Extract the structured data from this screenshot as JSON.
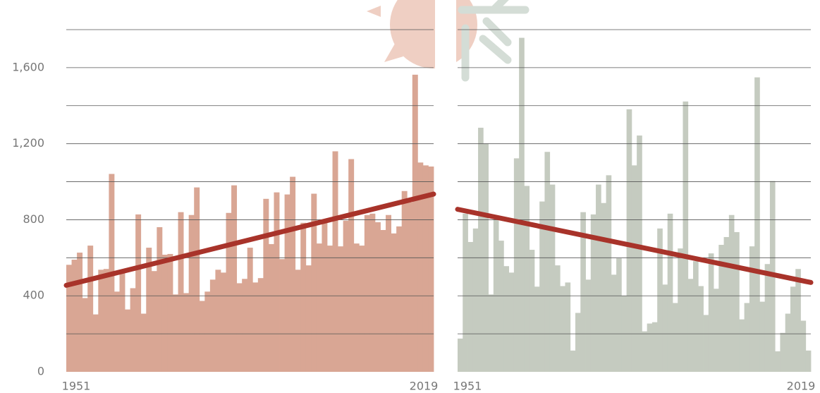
{
  "chart_data": [
    {
      "type": "bar",
      "color": "#d9a694",
      "x": [
        1951,
        1952,
        1953,
        1954,
        1955,
        1956,
        1957,
        1958,
        1959,
        1960,
        1961,
        1962,
        1963,
        1964,
        1965,
        1966,
        1967,
        1968,
        1969,
        1970,
        1971,
        1972,
        1973,
        1974,
        1975,
        1976,
        1977,
        1978,
        1979,
        1980,
        1981,
        1982,
        1983,
        1984,
        1985,
        1986,
        1987,
        1988,
        1989,
        1990,
        1991,
        1992,
        1993,
        1994,
        1995,
        1996,
        1997,
        1998,
        1999,
        2000,
        2001,
        2002,
        2003,
        2004,
        2005,
        2006,
        2007,
        2008,
        2009,
        2010,
        2011,
        2012,
        2013,
        2014,
        2015,
        2016,
        2017,
        2018,
        2019
      ],
      "values": [
        563,
        590,
        627,
        388,
        664,
        302,
        537,
        541,
        1041,
        422,
        530,
        328,
        440,
        828,
        306,
        653,
        530,
        761,
        616,
        620,
        407,
        840,
        414,
        825,
        970,
        373,
        422,
        485,
        537,
        522,
        836,
        981,
        466,
        489,
        653,
        470,
        493,
        910,
        672,
        944,
        593,
        933,
        1026,
        537,
        784,
        560,
        937,
        675,
        784,
        664,
        1160,
        660,
        795,
        1119,
        675,
        664,
        825,
        832,
        787,
        746,
        825,
        728,
        765,
        951,
        892,
        1563,
        1101,
        1086,
        1080
      ],
      "xlim": [
        1951,
        2019
      ],
      "xticks": [
        1951,
        2019
      ],
      "ylim": [
        0,
        1800
      ],
      "yticks": [
        0,
        400,
        800,
        {
          "value": 1200,
          "label": "1,200"
        },
        {
          "value": 1600,
          "label": "1,600"
        }
      ],
      "minor_yticks": [
        200,
        600,
        1000,
        1400,
        1800
      ],
      "trend": {
        "x": [
          1951,
          2019
        ],
        "values": [
          455,
          935
        ],
        "color": "#a8332a"
      }
    },
    {
      "type": "bar",
      "color": "#c5cbc0",
      "x": [
        1951,
        1952,
        1953,
        1954,
        1955,
        1956,
        1957,
        1958,
        1959,
        1960,
        1961,
        1962,
        1963,
        1964,
        1965,
        1966,
        1967,
        1968,
        1969,
        1970,
        1971,
        1972,
        1973,
        1974,
        1975,
        1976,
        1977,
        1978,
        1979,
        1980,
        1981,
        1982,
        1983,
        1984,
        1985,
        1986,
        1987,
        1988,
        1989,
        1990,
        1991,
        1992,
        1993,
        1994,
        1995,
        1996,
        1997,
        1998,
        1999,
        2000,
        2001,
        2002,
        2003,
        2004,
        2005,
        2006,
        2007,
        2008,
        2009,
        2010,
        2011,
        2012,
        2013,
        2014,
        2015,
        2016,
        2017,
        2018,
        2019
      ],
      "values": [
        175,
        832,
        683,
        754,
        1284,
        1201,
        407,
        802,
        690,
        556,
        522,
        1123,
        1757,
        978,
        642,
        448,
        896,
        1157,
        985,
        560,
        451,
        470,
        112,
        310,
        840,
        485,
        828,
        985,
        888,
        1034,
        511,
        597,
        400,
        1381,
        1086,
        1243,
        213,
        254,
        261,
        754,
        459,
        832,
        362,
        649,
        1422,
        489,
        582,
        451,
        299,
        623,
        437,
        668,
        709,
        825,
        735,
        276,
        362,
        660,
        1549,
        369,
        567,
        1004,
        108,
        205,
        306,
        448,
        541,
        269,
        112
      ],
      "xlim": [
        1951,
        2019
      ],
      "xticks": [
        1951,
        2019
      ],
      "ylim": [
        0,
        1800
      ],
      "minor_yticks": [
        200,
        400,
        600,
        800,
        1000,
        1200,
        1400,
        1600,
        1800
      ],
      "trend": {
        "x": [
          1951,
          2019
        ],
        "values": [
          855,
          470
        ],
        "color": "#a8332a"
      }
    }
  ]
}
